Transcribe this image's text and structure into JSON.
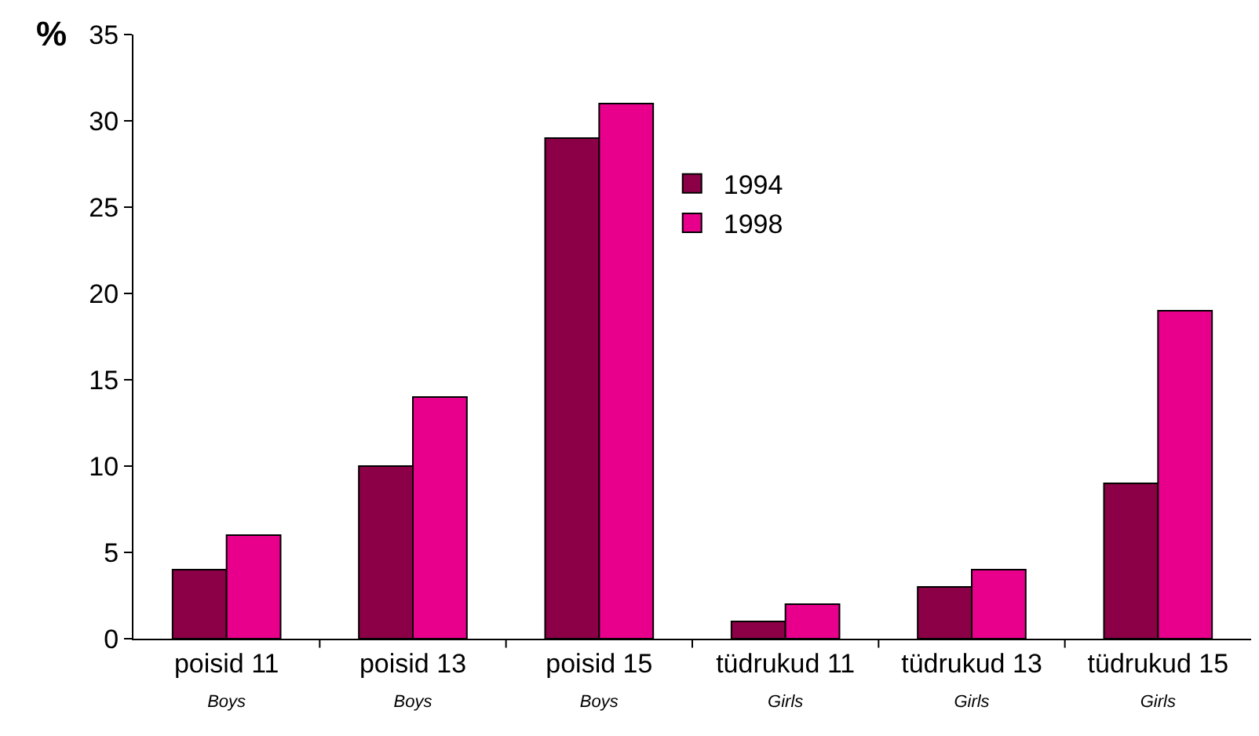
{
  "chart_data": {
    "type": "bar",
    "ylabel": "%",
    "categories": [
      "poisid 11\nBoys",
      "poisid 13\nBoys",
      "poisid 15\nBoys",
      "tüdrukud 11\nGirls",
      "tüdrukud 13\nGirls",
      "tüdrukud 15\nGirls"
    ],
    "series": [
      {
        "name": "1994",
        "color": "#8b0046",
        "values": [
          4,
          10,
          29,
          1,
          3,
          9
        ]
      },
      {
        "name": "1998",
        "color": "#e8008c",
        "values": [
          6,
          14,
          31,
          2,
          4,
          19
        ]
      }
    ],
    "ylim": [
      0,
      35
    ],
    "yticks": [
      0,
      5,
      10,
      15,
      20,
      25,
      30,
      35
    ],
    "legend": "center"
  }
}
